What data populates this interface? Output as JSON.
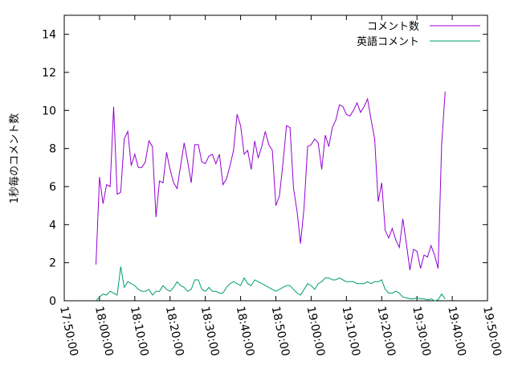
{
  "chart_data": {
    "type": "line",
    "title": "",
    "xlabel": "",
    "ylabel": "1秒毎のコメント数",
    "xlim": [
      "17:50:00",
      "19:50:00"
    ],
    "ylim": [
      0,
      15
    ],
    "x_ticks": [
      "17:50:00",
      "18:00:00",
      "18:10:00",
      "18:20:00",
      "18:30:00",
      "18:40:00",
      "18:50:00",
      "19:00:00",
      "19:10:00",
      "19:20:00",
      "19:30:00",
      "19:40:00",
      "19:50:00"
    ],
    "y_ticks": [
      0,
      2,
      4,
      6,
      8,
      10,
      12,
      14
    ],
    "grid": false,
    "legend": "top-right",
    "series": [
      {
        "name": "コメント数",
        "color": "#9400d3",
        "points": [
          [
            "17:59:00",
            1.9
          ],
          [
            "18:00:00",
            6.5
          ],
          [
            "18:01:00",
            5.1
          ],
          [
            "18:02:00",
            6.1
          ],
          [
            "18:03:00",
            6.0
          ],
          [
            "18:04:00",
            10.2
          ],
          [
            "18:05:00",
            5.6
          ],
          [
            "18:06:00",
            5.7
          ],
          [
            "18:07:00",
            8.5
          ],
          [
            "18:08:00",
            8.9
          ],
          [
            "18:09:00",
            7.1
          ],
          [
            "18:10:00",
            7.7
          ],
          [
            "18:11:00",
            7.0
          ],
          [
            "18:12:00",
            7.0
          ],
          [
            "18:13:00",
            7.3
          ],
          [
            "18:14:00",
            8.4
          ],
          [
            "18:15:00",
            8.1
          ],
          [
            "18:16:00",
            4.4
          ],
          [
            "18:17:00",
            6.3
          ],
          [
            "18:18:00",
            6.2
          ],
          [
            "18:19:00",
            7.8
          ],
          [
            "18:20:00",
            6.9
          ],
          [
            "18:21:00",
            6.2
          ],
          [
            "18:22:00",
            5.9
          ],
          [
            "18:23:00",
            7.1
          ],
          [
            "18:24:00",
            8.3
          ],
          [
            "18:25:00",
            7.3
          ],
          [
            "18:26:00",
            6.2
          ],
          [
            "18:27:00",
            8.2
          ],
          [
            "18:28:00",
            8.2
          ],
          [
            "18:29:00",
            7.3
          ],
          [
            "18:30:00",
            7.2
          ],
          [
            "18:31:00",
            7.6
          ],
          [
            "18:32:00",
            7.7
          ],
          [
            "18:33:00",
            7.2
          ],
          [
            "18:34:00",
            7.7
          ],
          [
            "18:35:00",
            6.1
          ],
          [
            "18:36:00",
            6.4
          ],
          [
            "18:37:00",
            7.1
          ],
          [
            "18:38:00",
            7.9
          ],
          [
            "18:39:00",
            9.8
          ],
          [
            "18:40:00",
            9.2
          ],
          [
            "18:41:00",
            7.7
          ],
          [
            "18:42:00",
            7.9
          ],
          [
            "18:43:00",
            6.9
          ],
          [
            "18:44:00",
            8.4
          ],
          [
            "18:45:00",
            7.5
          ],
          [
            "18:46:00",
            8.1
          ],
          [
            "18:47:00",
            8.9
          ],
          [
            "18:48:00",
            8.2
          ],
          [
            "18:49:00",
            7.9
          ],
          [
            "18:50:00",
            5.0
          ],
          [
            "18:51:00",
            5.5
          ],
          [
            "18:52:00",
            7.2
          ],
          [
            "18:53:00",
            9.2
          ],
          [
            "18:54:00",
            9.1
          ],
          [
            "18:55:00",
            5.9
          ],
          [
            "18:56:00",
            4.7
          ],
          [
            "18:57:00",
            3.0
          ],
          [
            "18:58:00",
            4.9
          ],
          [
            "18:59:00",
            8.1
          ],
          [
            "19:00:00",
            8.2
          ],
          [
            "19:01:00",
            8.5
          ],
          [
            "19:02:00",
            8.3
          ],
          [
            "19:03:00",
            6.9
          ],
          [
            "19:04:00",
            8.7
          ],
          [
            "19:05:00",
            8.1
          ],
          [
            "19:06:00",
            9.1
          ],
          [
            "19:07:00",
            9.5
          ],
          [
            "19:08:00",
            10.3
          ],
          [
            "19:09:00",
            10.2
          ],
          [
            "19:10:00",
            9.8
          ],
          [
            "19:11:00",
            9.7
          ],
          [
            "19:12:00",
            10.0
          ],
          [
            "19:13:00",
            10.4
          ],
          [
            "19:14:00",
            9.9
          ],
          [
            "19:15:00",
            10.2
          ],
          [
            "19:16:00",
            10.6
          ],
          [
            "19:17:00",
            9.5
          ],
          [
            "19:18:00",
            8.5
          ],
          [
            "19:19:00",
            5.2
          ],
          [
            "19:20:00",
            6.2
          ],
          [
            "19:21:00",
            3.7
          ],
          [
            "19:22:00",
            3.3
          ],
          [
            "19:23:00",
            3.8
          ],
          [
            "19:24:00",
            3.2
          ],
          [
            "19:25:00",
            2.8
          ],
          [
            "19:26:00",
            4.3
          ],
          [
            "19:27:00",
            3.0
          ],
          [
            "19:28:00",
            1.6
          ],
          [
            "19:29:00",
            2.7
          ],
          [
            "19:30:00",
            2.6
          ],
          [
            "19:31:00",
            1.7
          ],
          [
            "19:32:00",
            2.4
          ],
          [
            "19:33:00",
            2.3
          ],
          [
            "19:34:00",
            2.9
          ],
          [
            "19:35:00",
            2.4
          ],
          [
            "19:36:00",
            1.7
          ],
          [
            "19:37:00",
            8.2
          ],
          [
            "19:38:00",
            11.0
          ]
        ]
      },
      {
        "name": "英語コメント",
        "color": "#009e73",
        "points": [
          [
            "17:59:00",
            0.0
          ],
          [
            "18:00:00",
            0.2
          ],
          [
            "18:01:00",
            0.35
          ],
          [
            "18:02:00",
            0.3
          ],
          [
            "18:03:00",
            0.5
          ],
          [
            "18:04:00",
            0.4
          ],
          [
            "18:05:00",
            0.3
          ],
          [
            "18:06:00",
            1.8
          ],
          [
            "18:07:00",
            0.7
          ],
          [
            "18:08:00",
            1.0
          ],
          [
            "18:09:00",
            0.9
          ],
          [
            "18:10:00",
            0.8
          ],
          [
            "18:11:00",
            0.6
          ],
          [
            "18:12:00",
            0.5
          ],
          [
            "18:13:00",
            0.5
          ],
          [
            "18:14:00",
            0.6
          ],
          [
            "18:15:00",
            0.3
          ],
          [
            "18:16:00",
            0.5
          ],
          [
            "18:17:00",
            0.5
          ],
          [
            "18:18:00",
            0.8
          ],
          [
            "18:19:00",
            0.6
          ],
          [
            "18:20:00",
            0.5
          ],
          [
            "18:21:00",
            0.7
          ],
          [
            "18:22:00",
            1.0
          ],
          [
            "18:23:00",
            0.8
          ],
          [
            "18:24:00",
            0.7
          ],
          [
            "18:25:00",
            0.5
          ],
          [
            "18:26:00",
            0.6
          ],
          [
            "18:27:00",
            1.1
          ],
          [
            "18:28:00",
            1.1
          ],
          [
            "18:29:00",
            0.6
          ],
          [
            "18:30:00",
            0.5
          ],
          [
            "18:31:00",
            0.7
          ],
          [
            "18:32:00",
            0.5
          ],
          [
            "18:33:00",
            0.5
          ],
          [
            "18:34:00",
            0.4
          ],
          [
            "18:35:00",
            0.4
          ],
          [
            "18:36:00",
            0.7
          ],
          [
            "18:37:00",
            0.9
          ],
          [
            "18:38:00",
            1.0
          ],
          [
            "18:39:00",
            0.9
          ],
          [
            "18:40:00",
            0.8
          ],
          [
            "18:41:00",
            1.2
          ],
          [
            "18:42:00",
            0.9
          ],
          [
            "18:43:00",
            0.8
          ],
          [
            "18:44:00",
            1.1
          ],
          [
            "18:45:00",
            1.0
          ],
          [
            "18:46:00",
            0.9
          ],
          [
            "18:47:00",
            0.8
          ],
          [
            "18:48:00",
            0.7
          ],
          [
            "18:49:00",
            0.6
          ],
          [
            "18:50:00",
            0.5
          ],
          [
            "18:51:00",
            0.6
          ],
          [
            "18:52:00",
            0.7
          ],
          [
            "18:53:00",
            0.8
          ],
          [
            "18:54:00",
            0.8
          ],
          [
            "18:55:00",
            0.6
          ],
          [
            "18:56:00",
            0.4
          ],
          [
            "18:57:00",
            0.3
          ],
          [
            "18:58:00",
            0.6
          ],
          [
            "18:59:00",
            0.9
          ],
          [
            "19:00:00",
            0.8
          ],
          [
            "19:01:00",
            0.6
          ],
          [
            "19:02:00",
            0.9
          ],
          [
            "19:03:00",
            1.0
          ],
          [
            "19:04:00",
            1.2
          ],
          [
            "19:05:00",
            1.2
          ],
          [
            "19:06:00",
            1.1
          ],
          [
            "19:07:00",
            1.1
          ],
          [
            "19:08:00",
            1.2
          ],
          [
            "19:09:00",
            1.1
          ],
          [
            "19:10:00",
            1.0
          ],
          [
            "19:11:00",
            1.0
          ],
          [
            "19:12:00",
            1.0
          ],
          [
            "19:13:00",
            0.9
          ],
          [
            "19:14:00",
            0.9
          ],
          [
            "19:15:00",
            0.9
          ],
          [
            "19:16:00",
            1.0
          ],
          [
            "19:17:00",
            0.9
          ],
          [
            "19:18:00",
            1.0
          ],
          [
            "19:19:00",
            1.0
          ],
          [
            "19:20:00",
            1.1
          ],
          [
            "19:21:00",
            0.6
          ],
          [
            "19:22:00",
            0.4
          ],
          [
            "19:23:00",
            0.4
          ],
          [
            "19:24:00",
            0.5
          ],
          [
            "19:25:00",
            0.4
          ],
          [
            "19:26:00",
            0.2
          ],
          [
            "19:27:00",
            0.15
          ],
          [
            "19:28:00",
            0.1
          ],
          [
            "19:29:00",
            0.1
          ],
          [
            "19:30:00",
            0.15
          ],
          [
            "19:31:00",
            0.1
          ],
          [
            "19:32:00",
            0.1
          ],
          [
            "19:33:00",
            0.05
          ],
          [
            "19:34:00",
            0.1
          ],
          [
            "19:35:00",
            0.0
          ],
          [
            "19:36:00",
            0.05
          ],
          [
            "19:37:00",
            0.35
          ],
          [
            "19:38:00",
            0.1
          ]
        ]
      }
    ]
  }
}
